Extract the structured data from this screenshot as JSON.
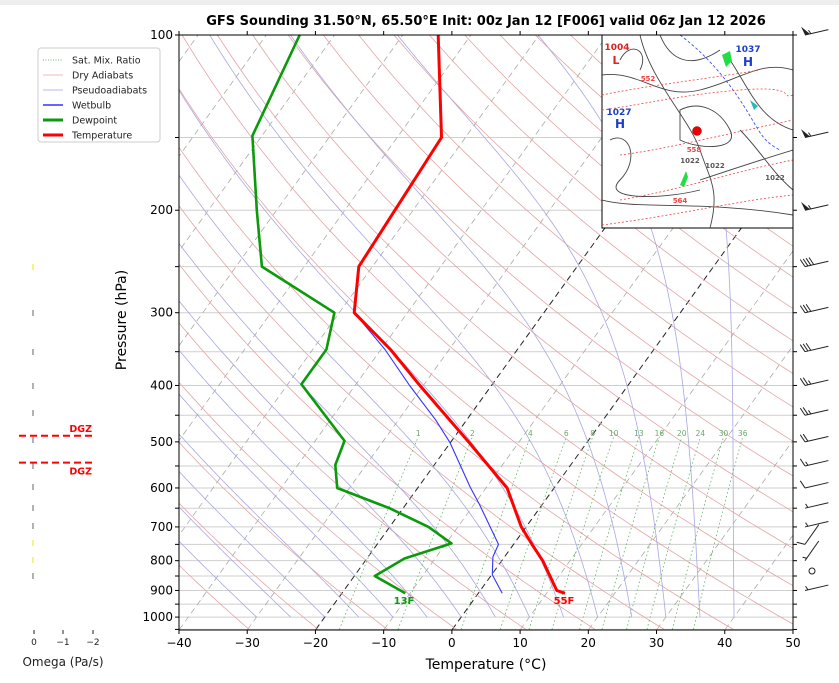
{
  "chart_data": {
    "type": "line",
    "subtype": "skew-t log-p sounding",
    "title": "GFS Sounding 31.50°N, 65.50°E Init: 00z Jan 12 [F006] valid 06z Jan 12 2026",
    "xlabel": "Temperature (°C)",
    "ylabel": "Pressure (hPa)",
    "xlim": [
      -40,
      50
    ],
    "ylim": [
      1050,
      100
    ],
    "y_scale": "log",
    "x_ticks": [
      -40,
      -30,
      -20,
      -10,
      0,
      10,
      20,
      30,
      40,
      50
    ],
    "y_ticks": [
      100,
      200,
      300,
      400,
      500,
      600,
      700,
      800,
      900,
      1000
    ],
    "grid": true,
    "highlighted_isotherms": [
      0,
      -20
    ],
    "legend": {
      "placement": "top-left",
      "entries": [
        {
          "label": "Sat. Mix. Ratio",
          "color": "#2ca02c",
          "style": "dotted"
        },
        {
          "label": "Dry Adiabats",
          "color": "#e8a0a0",
          "style": "solid-thin"
        },
        {
          "label": "Pseudoadiabats",
          "color": "#a0a0e0",
          "style": "solid-thin"
        },
        {
          "label": "Wetbulb",
          "color": "#3333ff",
          "style": "solid"
        },
        {
          "label": "Dewpoint",
          "color": "#0a9a0a",
          "style": "solid-thick"
        },
        {
          "label": "Temperature",
          "color": "#ff0000",
          "style": "solid-thick"
        }
      ]
    },
    "series": [
      {
        "name": "Temperature",
        "color": "#ff0000",
        "p": [
          100,
          150,
          250,
          300,
          347,
          400,
          500,
          600,
          700,
          750,
          800,
          900,
          910
        ],
        "T": [
          -64.8,
          -53.5,
          -52.0,
          -47.8,
          -38.6,
          -30.5,
          -17.4,
          -6.9,
          -0.7,
          2.7,
          6.0,
          11.2,
          12.7
        ]
      },
      {
        "name": "Dewpoint",
        "color": "#0a9a0a",
        "p": [
          100,
          149,
          200,
          250,
          300,
          347,
          398,
          498,
          548,
          600,
          650,
          700,
          747,
          793,
          850,
          910
        ],
        "T": [
          -85.1,
          -81.4,
          -72.9,
          -66.2,
          -50.7,
          -48.0,
          -48.0,
          -35.7,
          -34.5,
          -31.8,
          -22.0,
          -14.3,
          -9.2,
          -14.5,
          -17.0,
          -10.7
        ]
      },
      {
        "name": "Wetbulb",
        "color": "#3333ff",
        "p": [
          100,
          150,
          250,
          300,
          347,
          400,
          458,
          501,
          598,
          642,
          750,
          788,
          846,
          910
        ],
        "T": [
          -64.8,
          -53.5,
          -52.0,
          -47.8,
          -39.4,
          -32.0,
          -24.6,
          -20.1,
          -12.4,
          -9.1,
          -2.2,
          -1.7,
          0.1,
          3.5
        ]
      }
    ],
    "mixing_ratio_labels": [
      "1",
      "2",
      "4",
      "6",
      "8",
      "10",
      "13",
      "16",
      "20",
      "24",
      "30",
      "36"
    ],
    "surface_labels": {
      "dewpoint": "13F",
      "temperature": "55F"
    },
    "wind_barbs": [
      {
        "p": 100,
        "speed_kt": 55
      },
      {
        "p": 150,
        "speed_kt": 55
      },
      {
        "p": 200,
        "speed_kt": 55
      },
      {
        "p": 250,
        "speed_kt": 40
      },
      {
        "p": 300,
        "speed_kt": 30
      },
      {
        "p": 350,
        "speed_kt": 30
      },
      {
        "p": 400,
        "speed_kt": 25
      },
      {
        "p": 450,
        "speed_kt": 25
      },
      {
        "p": 500,
        "speed_kt": 20
      },
      {
        "p": 550,
        "speed_kt": 15
      },
      {
        "p": 600,
        "speed_kt": 10
      },
      {
        "p": 650,
        "speed_kt": 5
      },
      {
        "p": 700,
        "speed_kt": 5
      },
      {
        "p": 750,
        "speed_kt": 10
      },
      {
        "p": 800,
        "speed_kt": 5
      },
      {
        "p": 850,
        "speed_kt": 0
      },
      {
        "p": 900,
        "speed_kt": 5
      }
    ]
  },
  "omega_panel": {
    "xlabel": "Omega (Pa/s)",
    "x_ticks": [
      "0",
      "−1",
      "−2"
    ],
    "dgz_labels": [
      "DGZ",
      "DGZ"
    ],
    "dgz_pressures": [
      490,
      545
    ],
    "dgz_color": "#ff0000"
  },
  "inset_map": {
    "labels": [
      {
        "text": "1004",
        "color": "#dd2222"
      },
      {
        "text": "L",
        "color": "#dd2222"
      },
      {
        "text": "1037",
        "color": "#1a3fcc"
      },
      {
        "text": "H",
        "color": "#1a3fcc"
      },
      {
        "text": "1027",
        "color": "#1a3fcc"
      },
      {
        "text": "H",
        "color": "#1a3fcc"
      },
      {
        "text": "552",
        "color": "#ee4444"
      },
      {
        "text": "558",
        "color": "#ee4444"
      },
      {
        "text": "564",
        "color": "#ee4444"
      },
      {
        "text": "1022",
        "color": "#555555"
      },
      {
        "text": "1022",
        "color": "#555555"
      },
      {
        "text": "1022",
        "color": "#555555"
      }
    ],
    "location_marker_color": "#ee0000"
  }
}
